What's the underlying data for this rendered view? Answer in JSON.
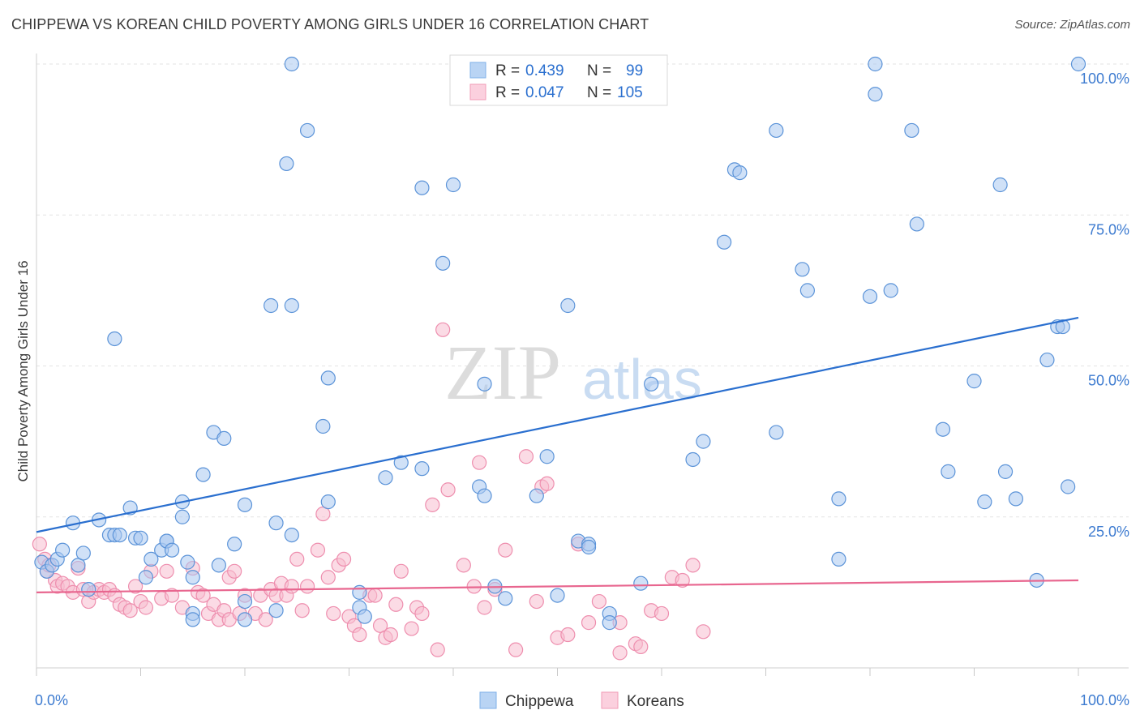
{
  "header": {
    "title": "CHIPPEWA VS KOREAN CHILD POVERTY AMONG GIRLS UNDER 16 CORRELATION CHART",
    "source": "Source: ZipAtlas.com"
  },
  "watermark": {
    "zip": "ZIP",
    "atlas": "atlas"
  },
  "legend_top": {
    "rows": [
      {
        "r_label": "R =",
        "r_value": "0.439",
        "n_label": "N =",
        "n_value": "99",
        "color": "#7fb0e8"
      },
      {
        "r_label": "R =",
        "r_value": "0.047",
        "n_label": "N =",
        "n_value": "105",
        "color": "#f19bb7"
      }
    ]
  },
  "legend_bottom": {
    "items": [
      "Chippewa",
      "Koreans"
    ]
  },
  "colors": {
    "chippewa_fill": "#a9c9f0",
    "chippewa_stroke": "#5b93d8",
    "chippewa_line": "#2a6fcf",
    "koreans_fill": "#f7bdd0",
    "koreans_stroke": "#ee8eae",
    "koreans_line": "#e8668f",
    "tick_text": "#3d7bd0"
  },
  "chart_data": {
    "type": "scatter",
    "title": "CHIPPEWA VS KOREAN CHILD POVERTY AMONG GIRLS UNDER 16 CORRELATION CHART",
    "xlabel": "",
    "ylabel": "Child Poverty Among Girls Under 16",
    "xlim": [
      0,
      100
    ],
    "ylim": [
      0,
      100
    ],
    "x_tick_labels": [
      "0.0%",
      "100.0%"
    ],
    "y_tick_labels": [
      "25.0%",
      "50.0%",
      "75.0%",
      "100.0%"
    ],
    "y_ticks": [
      25,
      50,
      75,
      100
    ],
    "grid": true,
    "series": [
      {
        "name": "Chippewa",
        "R": 0.439,
        "N": 99,
        "trend": [
          [
            0,
            22.5
          ],
          [
            100,
            58.0
          ]
        ],
        "points": [
          [
            0.5,
            17.5
          ],
          [
            1,
            16
          ],
          [
            1.5,
            17
          ],
          [
            2,
            18
          ],
          [
            2.5,
            19.5
          ],
          [
            3.5,
            24
          ],
          [
            4,
            17
          ],
          [
            4.5,
            19
          ],
          [
            5,
            13
          ],
          [
            6,
            24.5
          ],
          [
            7,
            22
          ],
          [
            7.5,
            22
          ],
          [
            7.5,
            54.5
          ],
          [
            8,
            22
          ],
          [
            9,
            26.5
          ],
          [
            9.5,
            21.5
          ],
          [
            10,
            21.5
          ],
          [
            10.5,
            15
          ],
          [
            11,
            18
          ],
          [
            12,
            19.5
          ],
          [
            12.5,
            21
          ],
          [
            12.5,
            21
          ],
          [
            13,
            19.5
          ],
          [
            14,
            25
          ],
          [
            14,
            27.5
          ],
          [
            14.5,
            17.5
          ],
          [
            15,
            15
          ],
          [
            15,
            9
          ],
          [
            15,
            8
          ],
          [
            16,
            32
          ],
          [
            17,
            39
          ],
          [
            18,
            38
          ],
          [
            17.5,
            17
          ],
          [
            19,
            20.5
          ],
          [
            20,
            27
          ],
          [
            20,
            8
          ],
          [
            20,
            11
          ],
          [
            22.5,
            60
          ],
          [
            23,
            24
          ],
          [
            23,
            9.5
          ],
          [
            24,
            83.5
          ],
          [
            24.5,
            100
          ],
          [
            24.5,
            60
          ],
          [
            24.5,
            22
          ],
          [
            26,
            89
          ],
          [
            27.5,
            40
          ],
          [
            28,
            48
          ],
          [
            28,
            27.5
          ],
          [
            31,
            10
          ],
          [
            31,
            12.5
          ],
          [
            31.5,
            8.5
          ],
          [
            33.5,
            31.5
          ],
          [
            35,
            34
          ],
          [
            37,
            33
          ],
          [
            37,
            79.5
          ],
          [
            39,
            67
          ],
          [
            40,
            80
          ],
          [
            42.5,
            30
          ],
          [
            43,
            28.5
          ],
          [
            43,
            47
          ],
          [
            44,
            13.5
          ],
          [
            45,
            11.5
          ],
          [
            48,
            28.5
          ],
          [
            49,
            35
          ],
          [
            50,
            12
          ],
          [
            51,
            60
          ],
          [
            52,
            21
          ],
          [
            53,
            20.5
          ],
          [
            53,
            20
          ],
          [
            55,
            9
          ],
          [
            55,
            7.5
          ],
          [
            58,
            14
          ],
          [
            59,
            47
          ],
          [
            63,
            34.5
          ],
          [
            64,
            37.5
          ],
          [
            66,
            70.5
          ],
          [
            67,
            82.5
          ],
          [
            67.5,
            82
          ],
          [
            71,
            39
          ],
          [
            71,
            89
          ],
          [
            73.5,
            66
          ],
          [
            74,
            62.5
          ],
          [
            77,
            28
          ],
          [
            77,
            18
          ],
          [
            80,
            61.5
          ],
          [
            80.5,
            100
          ],
          [
            80.5,
            95
          ],
          [
            82,
            62.5
          ],
          [
            84,
            89
          ],
          [
            84.5,
            73.5
          ],
          [
            87,
            39.5
          ],
          [
            87.5,
            32.5
          ],
          [
            90,
            47.5
          ],
          [
            91,
            27.5
          ],
          [
            92.5,
            80
          ],
          [
            93,
            32.5
          ],
          [
            94,
            28
          ],
          [
            96,
            14.5
          ],
          [
            97,
            51
          ],
          [
            98,
            56.5
          ],
          [
            98.5,
            56.5
          ],
          [
            99,
            30
          ],
          [
            100,
            100
          ]
        ]
      },
      {
        "name": "Koreans",
        "R": 0.047,
        "N": 105,
        "trend": [
          [
            0,
            12.5
          ],
          [
            100,
            14.5
          ]
        ],
        "points": [
          [
            0.3,
            20.5
          ],
          [
            0.8,
            18
          ],
          [
            1,
            16
          ],
          [
            1.2,
            17
          ],
          [
            1.8,
            14.5
          ],
          [
            2,
            13.5
          ],
          [
            2.5,
            14
          ],
          [
            3,
            13.5
          ],
          [
            3.5,
            12.5
          ],
          [
            4,
            16.5
          ],
          [
            4.5,
            13
          ],
          [
            5,
            11
          ],
          [
            5.5,
            12.5
          ],
          [
            6,
            13
          ],
          [
            6.5,
            12.5
          ],
          [
            7,
            13
          ],
          [
            7.5,
            12
          ],
          [
            8,
            10.5
          ],
          [
            8.5,
            10
          ],
          [
            9,
            9.5
          ],
          [
            9.5,
            13.5
          ],
          [
            10,
            11
          ],
          [
            10.5,
            10
          ],
          [
            11,
            16
          ],
          [
            12,
            11.5
          ],
          [
            12.5,
            16
          ],
          [
            13,
            12
          ],
          [
            14,
            10
          ],
          [
            15,
            16.5
          ],
          [
            15.5,
            12.5
          ],
          [
            16,
            12
          ],
          [
            16.5,
            9
          ],
          [
            17,
            10.5
          ],
          [
            17.5,
            8
          ],
          [
            18,
            9.5
          ],
          [
            18.5,
            8
          ],
          [
            18.5,
            15
          ],
          [
            19,
            16
          ],
          [
            19.5,
            9
          ],
          [
            20,
            12
          ],
          [
            21,
            9
          ],
          [
            21.5,
            12
          ],
          [
            22,
            8
          ],
          [
            22.5,
            13
          ],
          [
            23,
            12
          ],
          [
            23.5,
            14
          ],
          [
            24,
            12
          ],
          [
            24.5,
            13.5
          ],
          [
            25,
            18
          ],
          [
            25.5,
            9.5
          ],
          [
            26,
            13.5
          ],
          [
            27,
            19.5
          ],
          [
            27.5,
            25.5
          ],
          [
            28,
            15
          ],
          [
            28.5,
            9
          ],
          [
            29,
            17
          ],
          [
            29.5,
            18
          ],
          [
            30,
            8.5
          ],
          [
            30.5,
            7
          ],
          [
            31,
            5.5
          ],
          [
            32,
            12
          ],
          [
            32.5,
            12
          ],
          [
            33,
            7
          ],
          [
            33.5,
            5
          ],
          [
            34,
            5.5
          ],
          [
            34.5,
            10.5
          ],
          [
            35,
            16
          ],
          [
            36,
            6.5
          ],
          [
            36.5,
            10
          ],
          [
            37,
            9
          ],
          [
            38,
            27
          ],
          [
            38.5,
            3
          ],
          [
            39,
            56
          ],
          [
            39.5,
            29.5
          ],
          [
            41,
            17
          ],
          [
            42,
            13.5
          ],
          [
            42.5,
            34
          ],
          [
            43,
            10
          ],
          [
            44,
            13
          ],
          [
            45,
            19.5
          ],
          [
            46,
            3
          ],
          [
            47,
            35
          ],
          [
            48,
            11
          ],
          [
            48.5,
            30
          ],
          [
            49,
            30.5
          ],
          [
            50,
            5
          ],
          [
            51,
            5.5
          ],
          [
            52,
            20.5
          ],
          [
            53,
            7.5
          ],
          [
            54,
            11
          ],
          [
            56,
            2.5
          ],
          [
            56,
            7.5
          ],
          [
            57.5,
            4
          ],
          [
            58,
            3.5
          ],
          [
            59,
            9.5
          ],
          [
            60,
            9
          ],
          [
            61,
            15
          ],
          [
            62,
            14.5
          ],
          [
            63,
            17
          ],
          [
            64,
            6
          ]
        ]
      }
    ]
  }
}
